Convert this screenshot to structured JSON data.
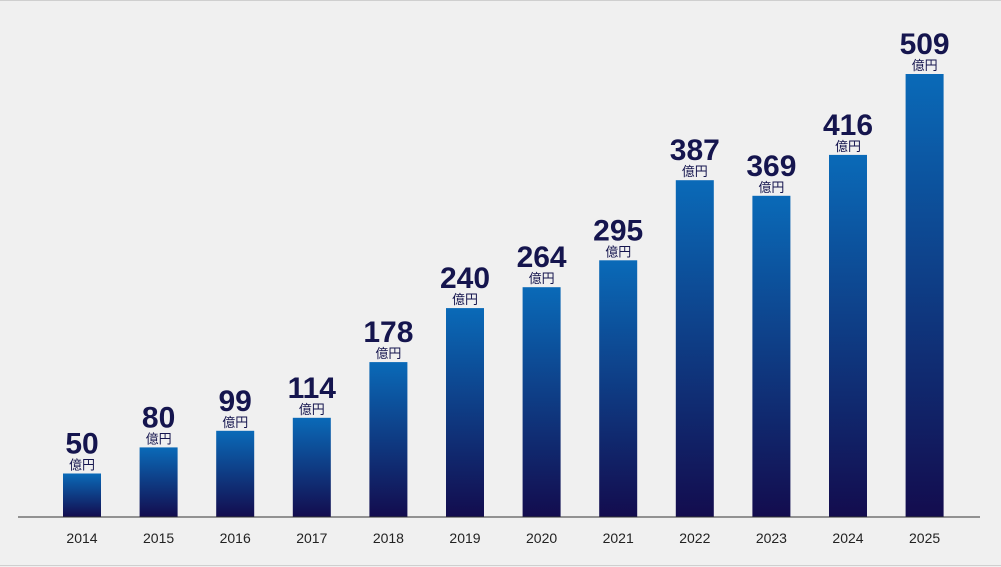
{
  "colors": {
    "background": "#f0f0f0",
    "bar_top": "#0a6ab8",
    "bar_bottom": "#130c4e",
    "label": "#15154e",
    "axis": "#333333"
  },
  "chart_data": {
    "type": "bar",
    "title": "",
    "xlabel": "",
    "ylabel": "",
    "unit": "億円",
    "ylim": [
      0,
      509
    ],
    "grid": false,
    "categories": [
      "2014",
      "2015",
      "2016",
      "2017",
      "2018",
      "2019",
      "2020",
      "2021",
      "2022",
      "2023",
      "2024",
      "2025"
    ],
    "values": [
      50,
      80,
      99,
      114,
      178,
      240,
      264,
      295,
      387,
      369,
      416,
      509
    ]
  }
}
